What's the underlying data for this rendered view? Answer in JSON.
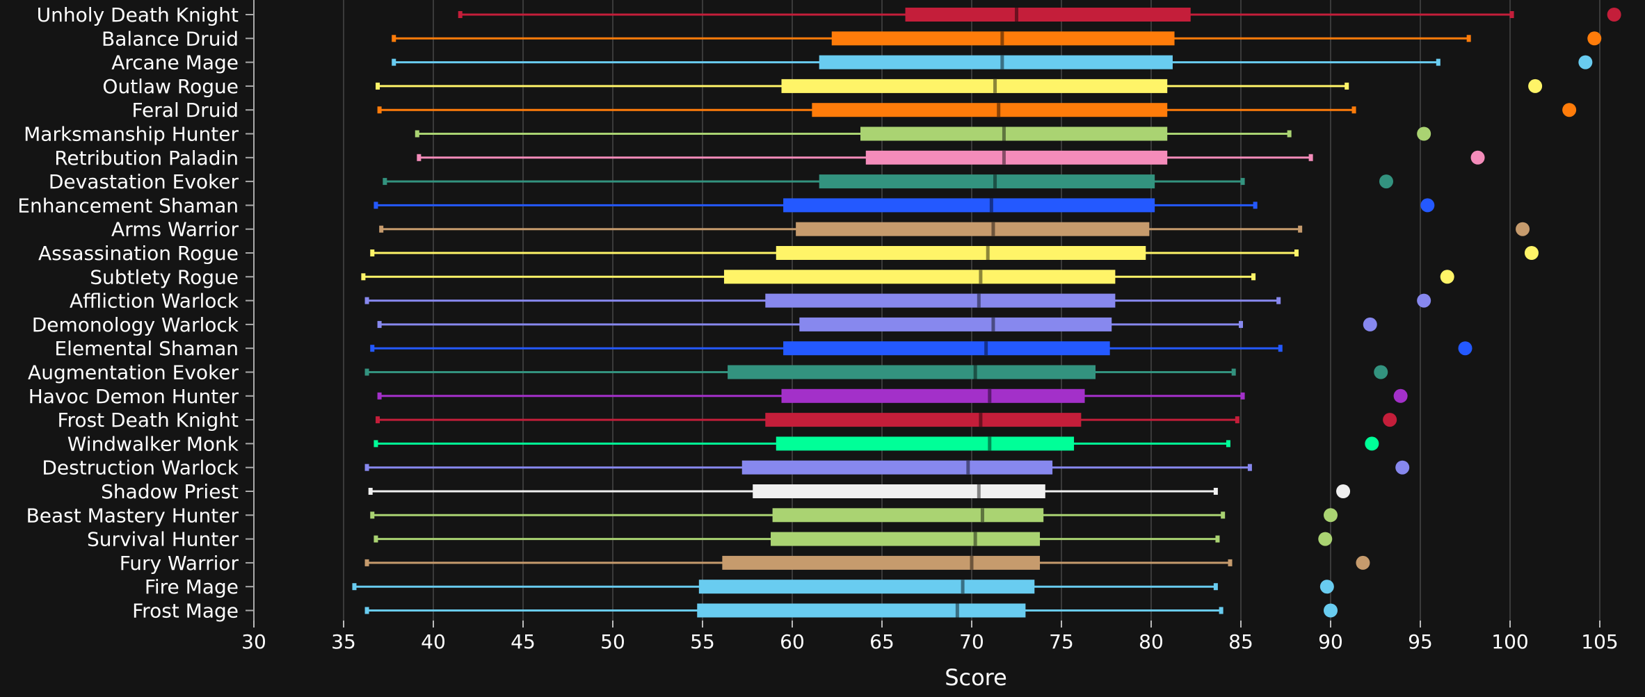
{
  "chart_data": {
    "type": "box",
    "orientation": "horizontal",
    "title": "",
    "xlabel": "Score",
    "ylabel": "",
    "xlim": [
      30,
      107
    ],
    "xticks": [
      30,
      35,
      40,
      45,
      50,
      55,
      60,
      65,
      70,
      75,
      80,
      85,
      90,
      95,
      100,
      105
    ],
    "grid": true,
    "background": "#141414",
    "series": [
      {
        "category": "Unholy Death Knight",
        "color": "#c41e3a",
        "min": 41.5,
        "q1": 66.3,
        "median": 72.5,
        "q3": 82.2,
        "max": 100.1,
        "outlier": 105.8
      },
      {
        "category": "Balance Druid",
        "color": "#ff7c0a",
        "min": 37.8,
        "q1": 62.2,
        "median": 71.7,
        "q3": 81.3,
        "max": 97.7,
        "outlier": 104.7
      },
      {
        "category": "Arcane Mage",
        "color": "#69ccf0",
        "min": 37.8,
        "q1": 61.5,
        "median": 71.7,
        "q3": 81.2,
        "max": 96.0,
        "outlier": 104.2
      },
      {
        "category": "Outlaw Rogue",
        "color": "#fff468",
        "min": 36.9,
        "q1": 59.4,
        "median": 71.3,
        "q3": 80.9,
        "max": 90.9,
        "outlier": 101.4
      },
      {
        "category": "Feral Druid",
        "color": "#ff7c0a",
        "min": 37.0,
        "q1": 61.1,
        "median": 71.5,
        "q3": 80.9,
        "max": 91.3,
        "outlier": 103.3
      },
      {
        "category": "Marksmanship Hunter",
        "color": "#aad372",
        "min": 39.1,
        "q1": 63.8,
        "median": 71.8,
        "q3": 80.9,
        "max": 87.7,
        "outlier": 95.2
      },
      {
        "category": "Retribution Paladin",
        "color": "#f48cba",
        "min": 39.2,
        "q1": 64.1,
        "median": 71.8,
        "q3": 80.9,
        "max": 88.9,
        "outlier": 98.2
      },
      {
        "category": "Devastation Evoker",
        "color": "#33937f",
        "min": 37.3,
        "q1": 61.5,
        "median": 71.3,
        "q3": 80.2,
        "max": 85.1,
        "outlier": 93.1
      },
      {
        "category": "Enhancement Shaman",
        "color": "#2459ff",
        "min": 36.8,
        "q1": 59.5,
        "median": 71.1,
        "q3": 80.2,
        "max": 85.8,
        "outlier": 95.4
      },
      {
        "category": "Arms Warrior",
        "color": "#c69b6d",
        "min": 37.1,
        "q1": 60.2,
        "median": 71.2,
        "q3": 79.9,
        "max": 88.3,
        "outlier": 100.7
      },
      {
        "category": "Assassination Rogue",
        "color": "#fff468",
        "min": 36.6,
        "q1": 59.1,
        "median": 70.9,
        "q3": 79.7,
        "max": 88.1,
        "outlier": 101.2
      },
      {
        "category": "Subtlety Rogue",
        "color": "#fff468",
        "min": 36.1,
        "q1": 56.2,
        "median": 70.5,
        "q3": 78.0,
        "max": 85.7,
        "outlier": 96.5
      },
      {
        "category": "Affliction Warlock",
        "color": "#8788ee",
        "min": 36.3,
        "q1": 58.5,
        "median": 70.4,
        "q3": 78.0,
        "max": 87.1,
        "outlier": 95.2
      },
      {
        "category": "Demonology Warlock",
        "color": "#8788ee",
        "min": 37.0,
        "q1": 60.4,
        "median": 71.2,
        "q3": 77.8,
        "max": 85.0,
        "outlier": 92.2
      },
      {
        "category": "Elemental Shaman",
        "color": "#2459ff",
        "min": 36.6,
        "q1": 59.5,
        "median": 70.8,
        "q3": 77.7,
        "max": 87.2,
        "outlier": 97.5
      },
      {
        "category": "Augmentation Evoker",
        "color": "#33937f",
        "min": 36.3,
        "q1": 56.4,
        "median": 70.2,
        "q3": 76.9,
        "max": 84.6,
        "outlier": 92.8
      },
      {
        "category": "Havoc Demon Hunter",
        "color": "#a330c9",
        "min": 37.0,
        "q1": 59.4,
        "median": 71.0,
        "q3": 76.3,
        "max": 85.1,
        "outlier": 93.9
      },
      {
        "category": "Frost Death Knight",
        "color": "#c41e3a",
        "min": 36.9,
        "q1": 58.5,
        "median": 70.5,
        "q3": 76.1,
        "max": 84.8,
        "outlier": 93.3
      },
      {
        "category": "Windwalker Monk",
        "color": "#00ff98",
        "min": 36.8,
        "q1": 59.1,
        "median": 71.0,
        "q3": 75.7,
        "max": 84.3,
        "outlier": 92.3
      },
      {
        "category": "Destruction Warlock",
        "color": "#8788ee",
        "min": 36.3,
        "q1": 57.2,
        "median": 69.8,
        "q3": 74.5,
        "max": 85.5,
        "outlier": 94.0
      },
      {
        "category": "Shadow Priest",
        "color": "#f0f0f0",
        "min": 36.5,
        "q1": 57.8,
        "median": 70.4,
        "q3": 74.1,
        "max": 83.6,
        "outlier": 90.7
      },
      {
        "category": "Beast Mastery Hunter",
        "color": "#aad372",
        "min": 36.6,
        "q1": 58.9,
        "median": 70.6,
        "q3": 74.0,
        "max": 84.0,
        "outlier": 90.0
      },
      {
        "category": "Survival Hunter",
        "color": "#aad372",
        "min": 36.8,
        "q1": 58.8,
        "median": 70.2,
        "q3": 73.8,
        "max": 83.7,
        "outlier": 89.7
      },
      {
        "category": "Fury Warrior",
        "color": "#c69b6d",
        "min": 36.3,
        "q1": 56.1,
        "median": 70.0,
        "q3": 73.8,
        "max": 84.4,
        "outlier": 91.8
      },
      {
        "category": "Fire Mage",
        "color": "#69ccf0",
        "min": 35.6,
        "q1": 54.8,
        "median": 69.5,
        "q3": 73.5,
        "max": 83.6,
        "outlier": 89.8
      },
      {
        "category": "Frost Mage",
        "color": "#69ccf0",
        "min": 36.3,
        "q1": 54.7,
        "median": 69.2,
        "q3": 73.0,
        "max": 83.9,
        "outlier": 90.0
      }
    ]
  }
}
